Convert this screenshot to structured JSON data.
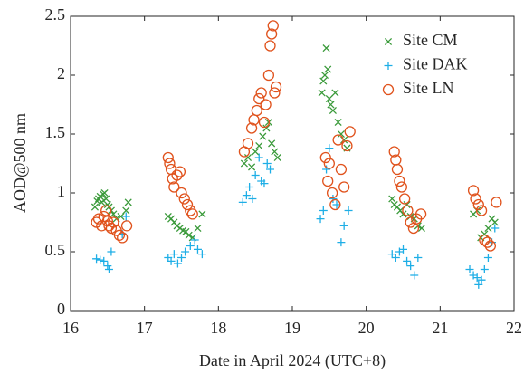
{
  "chart_data": {
    "type": "scatter",
    "x_label": "Date in April 2024 (UTC+8)",
    "y_label": "AOD@500 nm",
    "xlim": [
      16,
      22
    ],
    "xticks": [
      16,
      17,
      18,
      19,
      20,
      21,
      22
    ],
    "ylim": [
      0,
      2.5
    ],
    "yticks": [
      0,
      0.5,
      1,
      1.5,
      2,
      2.5
    ],
    "legend": "upper right",
    "series": [
      {
        "name": "Site CM",
        "color": "#3a9a3a",
        "marker": "x",
        "x": [
          16.33,
          16.36,
          16.38,
          16.4,
          16.42,
          16.44,
          16.46,
          16.48,
          16.5,
          16.52,
          16.55,
          16.58,
          16.62,
          16.68,
          16.75,
          16.78,
          17.32,
          17.36,
          17.4,
          17.44,
          17.48,
          17.52,
          17.56,
          17.6,
          17.65,
          17.72,
          17.78,
          18.35,
          18.4,
          18.45,
          18.5,
          18.55,
          18.6,
          18.65,
          18.68,
          18.72,
          18.76,
          18.8,
          19.4,
          19.42,
          19.44,
          19.46,
          19.48,
          19.5,
          19.52,
          19.55,
          19.58,
          19.62,
          19.66,
          19.7,
          19.74,
          20.35,
          20.38,
          20.42,
          20.46,
          20.5,
          20.55,
          20.6,
          20.65,
          20.7,
          20.75,
          21.45,
          21.5,
          21.55,
          21.6,
          21.65,
          21.7,
          21.74
        ],
        "values": [
          0.88,
          0.93,
          0.95,
          0.97,
          0.92,
          0.99,
          1.0,
          0.95,
          0.9,
          0.88,
          0.85,
          0.82,
          0.78,
          0.8,
          0.85,
          0.92,
          0.8,
          0.78,
          0.75,
          0.72,
          0.7,
          0.68,
          0.67,
          0.64,
          0.62,
          0.7,
          0.82,
          1.25,
          1.3,
          1.22,
          1.35,
          1.4,
          1.48,
          1.55,
          1.6,
          1.42,
          1.35,
          1.3,
          1.85,
          1.95,
          2.0,
          2.23,
          2.05,
          1.8,
          1.75,
          1.7,
          1.85,
          1.6,
          1.5,
          1.45,
          1.38,
          0.95,
          0.9,
          0.88,
          0.85,
          0.82,
          0.9,
          0.8,
          0.78,
          0.72,
          0.7,
          0.82,
          0.85,
          0.62,
          0.65,
          0.7,
          0.78,
          0.75
        ]
      },
      {
        "name": "Site DAK",
        "color": "#1eaee6",
        "marker": "+",
        "x": [
          16.35,
          16.4,
          16.45,
          16.5,
          16.52,
          16.55,
          16.7,
          16.75,
          17.32,
          17.36,
          17.4,
          17.45,
          17.5,
          17.55,
          17.62,
          17.68,
          17.72,
          17.78,
          18.33,
          18.38,
          18.42,
          18.46,
          18.5,
          18.55,
          18.58,
          18.62,
          18.66,
          18.7,
          19.38,
          19.42,
          19.46,
          19.5,
          19.55,
          19.6,
          19.66,
          19.7,
          19.76,
          20.35,
          20.4,
          20.45,
          20.5,
          20.55,
          20.6,
          20.65,
          20.7,
          21.4,
          21.45,
          21.5,
          21.52,
          21.56,
          21.6,
          21.65,
          21.7,
          21.74
        ],
        "values": [
          0.44,
          0.43,
          0.42,
          0.38,
          0.35,
          0.5,
          0.65,
          0.8,
          0.45,
          0.42,
          0.48,
          0.4,
          0.45,
          0.5,
          0.55,
          0.6,
          0.52,
          0.48,
          0.92,
          0.98,
          1.05,
          0.95,
          1.15,
          1.3,
          1.1,
          1.08,
          1.25,
          1.2,
          0.78,
          0.85,
          1.2,
          1.38,
          0.95,
          0.9,
          0.58,
          0.72,
          0.85,
          0.48,
          0.45,
          0.5,
          0.52,
          0.42,
          0.38,
          0.3,
          0.45,
          0.35,
          0.3,
          0.28,
          0.22,
          0.26,
          0.35,
          0.45,
          0.58,
          0.7
        ]
      },
      {
        "name": "Site LN",
        "color": "#e0521c",
        "marker": "o",
        "x": [
          16.35,
          16.38,
          16.42,
          16.45,
          16.48,
          16.5,
          16.52,
          16.55,
          16.58,
          16.62,
          16.66,
          16.7,
          16.76,
          17.32,
          17.34,
          17.36,
          17.38,
          17.4,
          17.44,
          17.48,
          17.5,
          17.54,
          17.58,
          17.62,
          17.65,
          18.35,
          18.4,
          18.45,
          18.48,
          18.52,
          18.55,
          18.58,
          18.62,
          18.64,
          18.68,
          18.7,
          18.72,
          18.74,
          18.76,
          18.78,
          19.45,
          19.48,
          19.5,
          19.54,
          19.58,
          19.62,
          19.66,
          19.7,
          19.74,
          19.78,
          20.38,
          20.4,
          20.42,
          20.45,
          20.48,
          20.52,
          20.56,
          20.6,
          20.64,
          20.68,
          20.74,
          21.45,
          21.48,
          21.52,
          21.56,
          21.6,
          21.64,
          21.68,
          21.76
        ],
        "values": [
          0.75,
          0.78,
          0.72,
          0.8,
          0.85,
          0.76,
          0.72,
          0.7,
          0.75,
          0.68,
          0.64,
          0.62,
          0.72,
          1.3,
          1.25,
          1.2,
          1.12,
          1.05,
          1.15,
          1.18,
          1.0,
          0.95,
          0.9,
          0.85,
          0.82,
          1.35,
          1.42,
          1.55,
          1.62,
          1.7,
          1.8,
          1.85,
          1.6,
          1.75,
          2.0,
          2.25,
          2.35,
          2.42,
          1.85,
          1.9,
          1.3,
          1.1,
          1.25,
          1.0,
          0.9,
          1.45,
          1.2,
          1.05,
          1.4,
          1.52,
          1.35,
          1.28,
          1.2,
          1.1,
          1.05,
          0.95,
          0.85,
          0.75,
          0.7,
          0.78,
          0.82,
          1.02,
          0.95,
          0.9,
          0.85,
          0.6,
          0.58,
          0.55,
          0.92
        ]
      }
    ]
  }
}
